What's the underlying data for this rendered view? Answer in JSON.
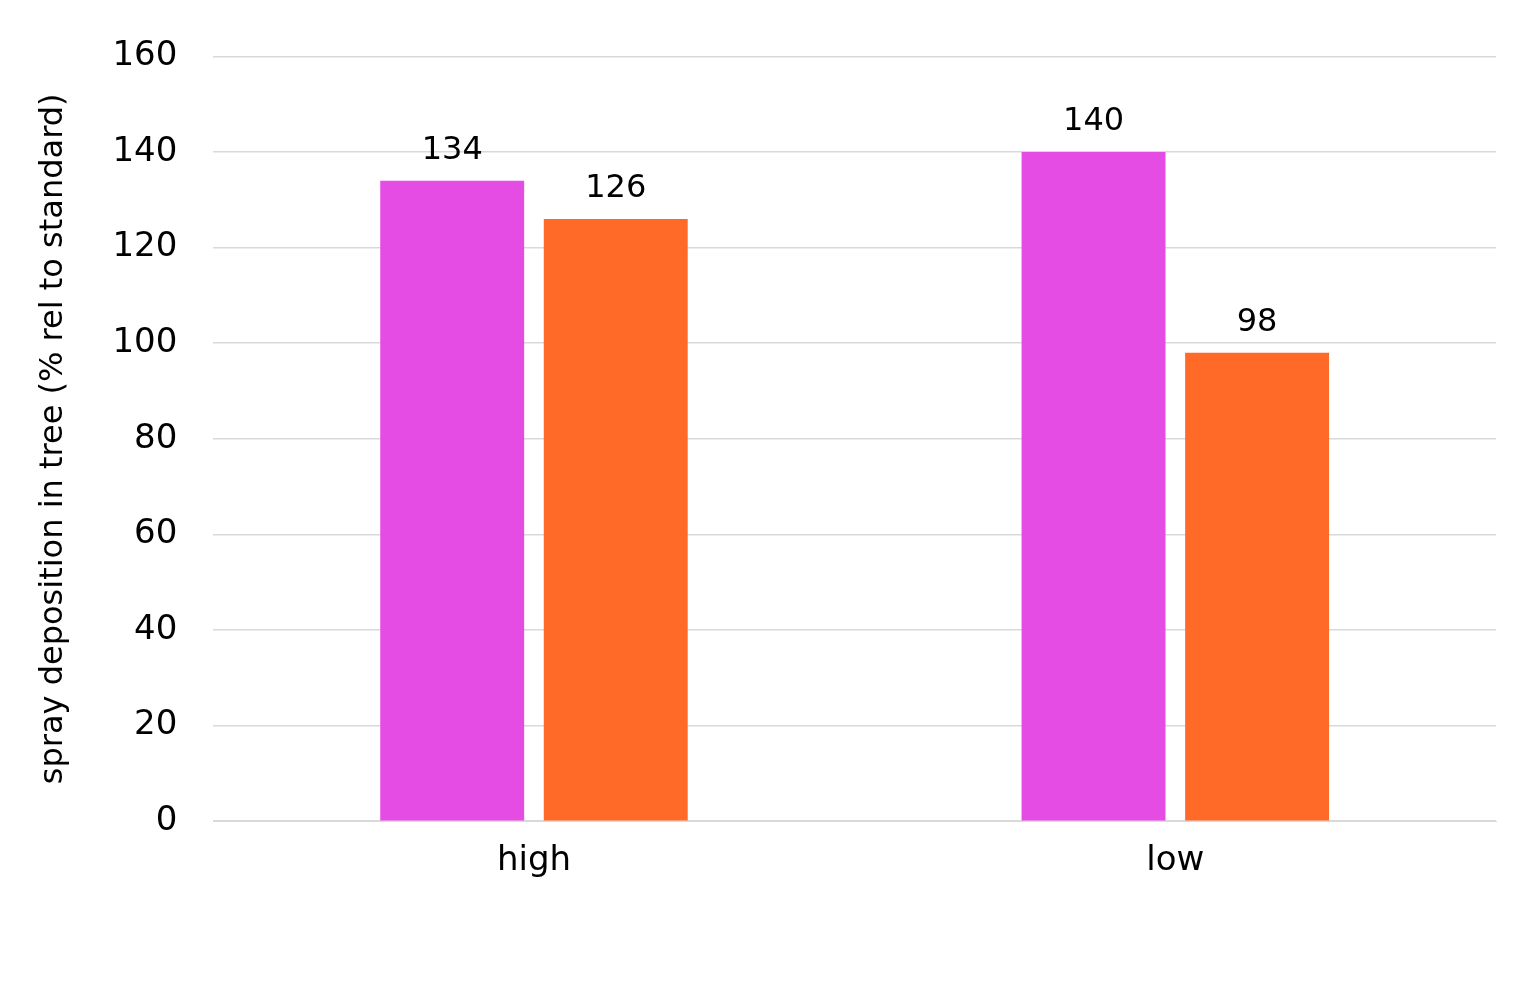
{
  "chart_data": {
    "type": "bar",
    "ylabel": "spray deposition in tree (% rel to standard)",
    "categories": [
      "high",
      "low"
    ],
    "series": [
      {
        "color": "#e44ce4",
        "values": [
          134,
          140
        ]
      },
      {
        "color": "#ff6a28",
        "values": [
          126,
          98
        ]
      }
    ],
    "ylim": [
      0,
      160
    ],
    "yticks": [
      0,
      20,
      40,
      60,
      80,
      100,
      120,
      140,
      160
    ],
    "grid": "y",
    "data_labels": true
  }
}
